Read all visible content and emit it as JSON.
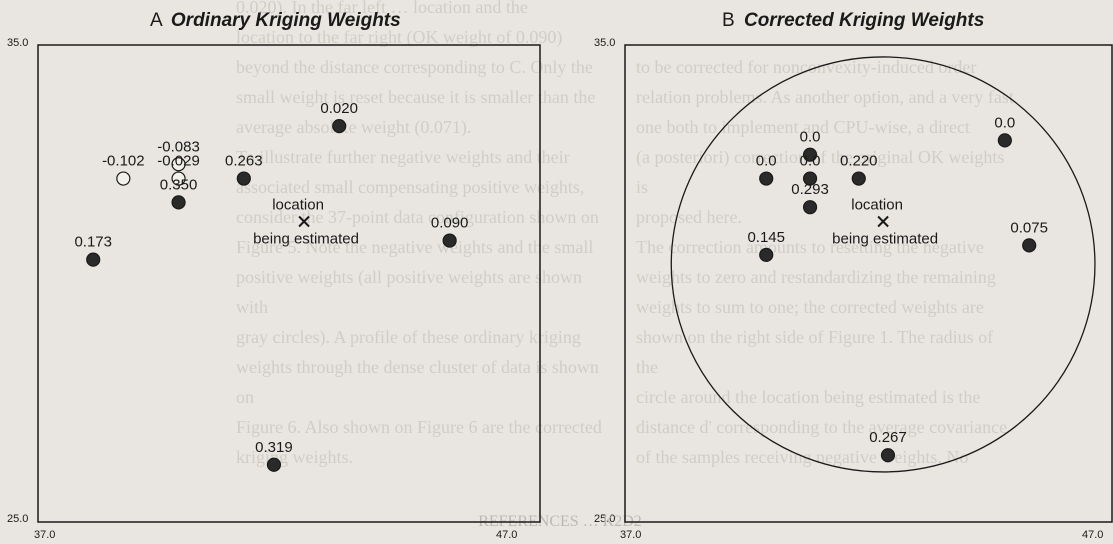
{
  "background_text": {
    "left_column": [
      "0.020). In the far left … location and the",
      "location to the far right (OK weight of 0.090)",
      "beyond the distance corresponding to C. Only the",
      "small weight is reset because it is smaller than the",
      "average absolute weight (0.071).",
      "To illustrate further negative weights and their",
      "associated small compensating positive weights,",
      "consider the 37-point data configuration shown on",
      "Figure 5. Note the negative weights and the small",
      "positive weights (all positive weights are shown with",
      "gray circles). A profile of these ordinary kriging",
      "weights through the dense cluster of data is shown on",
      "Figure 6. Also shown on Figure 6 are the corrected",
      "kriging weights."
    ],
    "right_column": [
      "to be corrected for nonconvexity-induced order",
      "relation problems. As another option, and a very fast",
      "one both to implement and CPU-wise, a direct",
      "(a posteriori) correction of the original OK weights is",
      "proposed here.",
      "The correction amounts to resetting the negative",
      "weights to zero and restandardizing the remaining",
      "weights to sum to one; the corrected weights are",
      "shown on the right side of Figure 1. The radius of the",
      "circle around the location being estimated is the",
      "distance d' corresponding to the average covariance",
      "of the samples receiving negative weights. No"
    ],
    "bottom": "REFERENCES  …  K2D2"
  },
  "panels": [
    {
      "id": "A",
      "letter": "A",
      "title": "Ordinary Kriging Weights",
      "y_top": "35.0",
      "y_bottom": "25.0",
      "x_left": "37.0",
      "x_right": "47.0",
      "location_text": [
        "location",
        "being estimated"
      ],
      "location_xy": [
        42.3,
        31.3
      ],
      "circle": null,
      "points": [
        {
          "label": "0.020",
          "x": 43.0,
          "y": 33.3,
          "filled": true
        },
        {
          "label": "-0.083",
          "x": 39.8,
          "y": 32.5,
          "filled": false
        },
        {
          "label": "-0.102",
          "x": 38.7,
          "y": 32.2,
          "filled": false
        },
        {
          "label": "-0.029",
          "x": 39.8,
          "y": 32.2,
          "filled": false
        },
        {
          "label": "0.263",
          "x": 41.1,
          "y": 32.2,
          "filled": true
        },
        {
          "label": "0.350",
          "x": 39.8,
          "y": 31.7,
          "filled": true
        },
        {
          "label": "0.090",
          "x": 45.2,
          "y": 30.9,
          "filled": true
        },
        {
          "label": "0.173",
          "x": 38.1,
          "y": 30.5,
          "filled": true
        },
        {
          "label": "0.319",
          "x": 41.7,
          "y": 26.2,
          "filled": true
        }
      ]
    },
    {
      "id": "B",
      "letter": "B",
      "title": "Corrected Kriging Weights",
      "y_top": "35.0",
      "y_bottom": "25.0",
      "x_left": "37.0",
      "x_right": "47.0",
      "location_text": [
        "location",
        "being estimated"
      ],
      "location_xy": [
        42.3,
        31.3
      ],
      "circle": {
        "cx": 42.3,
        "cy": 30.4,
        "r": 4.35
      },
      "points": [
        {
          "label": "0.0",
          "x": 44.8,
          "y": 33.0,
          "filled": true
        },
        {
          "label": "0.0",
          "x": 40.8,
          "y": 32.7,
          "filled": true
        },
        {
          "label": "0.0",
          "x": 39.9,
          "y": 32.2,
          "filled": true
        },
        {
          "label": "0.0",
          "x": 40.8,
          "y": 32.2,
          "filled": true
        },
        {
          "label": "0.220",
          "x": 41.8,
          "y": 32.2,
          "filled": true
        },
        {
          "label": "0.293",
          "x": 40.8,
          "y": 31.6,
          "filled": true
        },
        {
          "label": "0.075",
          "x": 45.3,
          "y": 30.8,
          "filled": true
        },
        {
          "label": "0.145",
          "x": 39.9,
          "y": 30.6,
          "filled": true
        },
        {
          "label": "0.267",
          "x": 42.4,
          "y": 26.4,
          "filled": true
        }
      ]
    }
  ]
}
